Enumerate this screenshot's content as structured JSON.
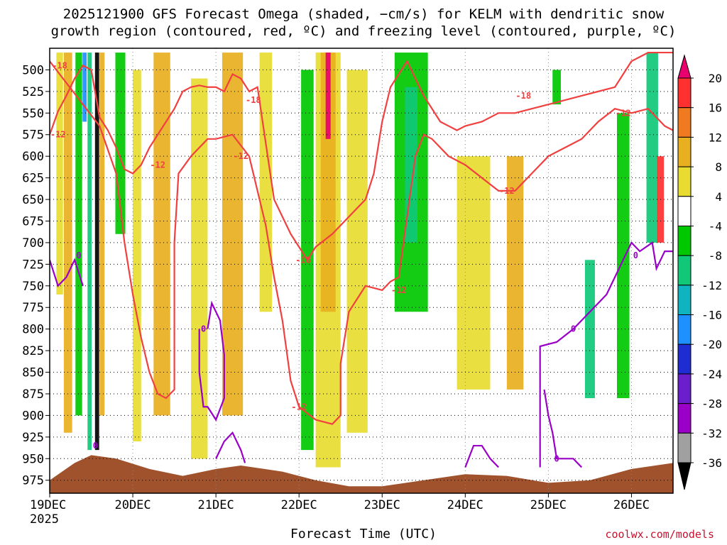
{
  "chart_data": {
    "type": "heatmap",
    "title_line1": "2025121900 GFS Forecast Omega (shaded, −cm/s) for KELM with dendritic snow",
    "title_line2": "growth region (contoured, red, ºC) and freezing level (contoured, purple, ºC)",
    "xlabel": "Forecast Time (UTC)",
    "credit": "coolwx.com/models",
    "x_ticks": [
      {
        "day": 0,
        "label": "19DEC"
      },
      {
        "day": 1,
        "label": "20DEC"
      },
      {
        "day": 2,
        "label": "21DEC"
      },
      {
        "day": 3,
        "label": "22DEC"
      },
      {
        "day": 4,
        "label": "23DEC"
      },
      {
        "day": 5,
        "label": "24DEC"
      },
      {
        "day": 6,
        "label": "25DEC"
      },
      {
        "day": 7,
        "label": "26DEC"
      }
    ],
    "x_year": "2025",
    "xlim_days": [
      0,
      7.5
    ],
    "y_ticks": [
      500,
      525,
      550,
      575,
      600,
      625,
      650,
      675,
      700,
      725,
      750,
      775,
      800,
      825,
      850,
      875,
      900,
      925,
      950,
      975
    ],
    "ylim_hpa": [
      475,
      990
    ],
    "colorbar": {
      "levels": [
        20,
        16,
        12,
        8,
        4,
        -4,
        -8,
        -12,
        -16,
        -20,
        -24,
        -28,
        -32,
        -36
      ],
      "colors": [
        "#e8006e",
        "#ff3030",
        "#f07a20",
        "#e8b020",
        "#e8dc30",
        "#ffffff",
        "#00c800",
        "#10c878",
        "#10b4c0",
        "#1e90ff",
        "#1e2cd2",
        "#6a1ecc",
        "#9a00c8",
        "#a0a0a0",
        "#000000"
      ]
    },
    "omega_bands": [
      {
        "day": 0.12,
        "width": 0.08,
        "top": 480,
        "bottom": 760,
        "color": "#e8dc30"
      },
      {
        "day": 0.22,
        "width": 0.1,
        "top": 480,
        "bottom": 920,
        "color": "#e8b020"
      },
      {
        "day": 0.35,
        "width": 0.08,
        "top": 480,
        "bottom": 900,
        "color": "#00c800"
      },
      {
        "day": 0.42,
        "width": 0.05,
        "top": 480,
        "bottom": 560,
        "color": "#1e90ff"
      },
      {
        "day": 0.48,
        "width": 0.05,
        "top": 480,
        "bottom": 940,
        "color": "#10c878"
      },
      {
        "day": 0.57,
        "width": 0.05,
        "top": 480,
        "bottom": 940,
        "color": "#000000"
      },
      {
        "day": 0.63,
        "width": 0.06,
        "top": 480,
        "bottom": 900,
        "color": "#e8b020"
      },
      {
        "day": 0.85,
        "width": 0.12,
        "top": 480,
        "bottom": 690,
        "color": "#00c800"
      },
      {
        "day": 1.05,
        "width": 0.1,
        "top": 500,
        "bottom": 930,
        "color": "#e8dc30"
      },
      {
        "day": 1.35,
        "width": 0.2,
        "top": 480,
        "bottom": 900,
        "color": "#e8b020"
      },
      {
        "day": 1.8,
        "width": 0.2,
        "top": 510,
        "bottom": 950,
        "color": "#e8dc30"
      },
      {
        "day": 2.2,
        "width": 0.25,
        "top": 480,
        "bottom": 900,
        "color": "#e8b020"
      },
      {
        "day": 2.6,
        "width": 0.15,
        "top": 480,
        "bottom": 780,
        "color": "#e8dc30"
      },
      {
        "day": 3.1,
        "width": 0.15,
        "top": 500,
        "bottom": 940,
        "color": "#00c800"
      },
      {
        "day": 3.35,
        "width": 0.3,
        "top": 480,
        "bottom": 960,
        "color": "#e8dc30"
      },
      {
        "day": 3.35,
        "width": 0.18,
        "top": 480,
        "bottom": 780,
        "color": "#e8b020"
      },
      {
        "day": 3.35,
        "width": 0.06,
        "top": 480,
        "bottom": 580,
        "color": "#e8006e"
      },
      {
        "day": 3.7,
        "width": 0.25,
        "top": 500,
        "bottom": 920,
        "color": "#e8dc30"
      },
      {
        "day": 4.35,
        "width": 0.4,
        "top": 480,
        "bottom": 780,
        "color": "#00c800"
      },
      {
        "day": 4.35,
        "width": 0.15,
        "top": 520,
        "bottom": 700,
        "color": "#10c878"
      },
      {
        "day": 5.1,
        "width": 0.4,
        "top": 600,
        "bottom": 870,
        "color": "#e8dc30"
      },
      {
        "day": 5.6,
        "width": 0.2,
        "top": 600,
        "bottom": 870,
        "color": "#e8b020"
      },
      {
        "day": 6.1,
        "width": 0.1,
        "top": 500,
        "bottom": 540,
        "color": "#00c800"
      },
      {
        "day": 6.5,
        "width": 0.12,
        "top": 720,
        "bottom": 880,
        "color": "#10c878"
      },
      {
        "day": 6.9,
        "width": 0.15,
        "top": 550,
        "bottom": 880,
        "color": "#00c800"
      },
      {
        "day": 7.25,
        "width": 0.14,
        "top": 480,
        "bottom": 700,
        "color": "#10c878"
      },
      {
        "day": 7.35,
        "width": 0.08,
        "top": 600,
        "bottom": 700,
        "color": "#ff3030"
      }
    ],
    "surface": [
      {
        "day": 0.0,
        "hpa": 975
      },
      {
        "day": 0.3,
        "hpa": 955
      },
      {
        "day": 0.5,
        "hpa": 946
      },
      {
        "day": 0.8,
        "hpa": 950
      },
      {
        "day": 1.2,
        "hpa": 962
      },
      {
        "day": 1.6,
        "hpa": 970
      },
      {
        "day": 2.0,
        "hpa": 962
      },
      {
        "day": 2.3,
        "hpa": 958
      },
      {
        "day": 2.8,
        "hpa": 965
      },
      {
        "day": 3.2,
        "hpa": 975
      },
      {
        "day": 3.6,
        "hpa": 982
      },
      {
        "day": 4.0,
        "hpa": 982
      },
      {
        "day": 4.5,
        "hpa": 975
      },
      {
        "day": 5.0,
        "hpa": 968
      },
      {
        "day": 5.5,
        "hpa": 970
      },
      {
        "day": 6.0,
        "hpa": 978
      },
      {
        "day": 6.5,
        "hpa": 975
      },
      {
        "day": 7.0,
        "hpa": 962
      },
      {
        "day": 7.5,
        "hpa": 955
      }
    ],
    "contours": [
      {
        "name": "dgz-top",
        "color": "#f04040",
        "points": [
          [
            0,
            575
          ],
          [
            0.1,
            548
          ],
          [
            0.2,
            530
          ],
          [
            0.3,
            510
          ],
          [
            0.4,
            495
          ],
          [
            0.5,
            500
          ],
          [
            0.6,
            555
          ],
          [
            0.7,
            570
          ],
          [
            0.8,
            590
          ],
          [
            0.9,
            615
          ],
          [
            1.0,
            620
          ],
          [
            1.1,
            610
          ],
          [
            1.2,
            590
          ],
          [
            1.3,
            575
          ],
          [
            1.4,
            560
          ],
          [
            1.5,
            545
          ],
          [
            1.6,
            525
          ],
          [
            1.7,
            520
          ],
          [
            1.8,
            518
          ],
          [
            1.9,
            520
          ],
          [
            2.0,
            520
          ],
          [
            2.1,
            525
          ],
          [
            2.2,
            505
          ],
          [
            2.3,
            510
          ],
          [
            2.4,
            525
          ],
          [
            2.5,
            520
          ],
          [
            2.7,
            650
          ],
          [
            2.9,
            690
          ],
          [
            3.0,
            705
          ],
          [
            3.1,
            720
          ],
          [
            3.2,
            705
          ],
          [
            3.4,
            690
          ],
          [
            3.6,
            670
          ],
          [
            3.8,
            650
          ],
          [
            3.9,
            620
          ],
          [
            4.0,
            560
          ],
          [
            4.1,
            520
          ],
          [
            4.3,
            490
          ],
          [
            4.5,
            530
          ],
          [
            4.7,
            560
          ],
          [
            4.9,
            570
          ],
          [
            5.0,
            565
          ],
          [
            5.2,
            560
          ],
          [
            5.4,
            550
          ],
          [
            5.6,
            550
          ],
          [
            5.8,
            545
          ],
          [
            6.0,
            540
          ],
          [
            6.2,
            535
          ],
          [
            6.4,
            530
          ],
          [
            6.6,
            525
          ],
          [
            6.8,
            520
          ],
          [
            7.0,
            490
          ],
          [
            7.2,
            480
          ],
          [
            7.4,
            480
          ],
          [
            7.5,
            480
          ]
        ],
        "labels": [
          [
            0.12,
            495,
            "-18"
          ],
          [
            2.45,
            535,
            "-18"
          ],
          [
            3.05,
            720,
            "-18"
          ],
          [
            5.7,
            530,
            "-18"
          ]
        ]
      },
      {
        "name": "dgz-bottom",
        "color": "#f04040",
        "points": [
          [
            0,
            490
          ],
          [
            0.6,
            565
          ],
          [
            0.8,
            620
          ],
          [
            0.9,
            700
          ],
          [
            1.0,
            760
          ],
          [
            1.1,
            810
          ],
          [
            1.2,
            850
          ],
          [
            1.3,
            875
          ],
          [
            1.4,
            880
          ],
          [
            1.5,
            870
          ],
          [
            1.5,
            700
          ],
          [
            1.55,
            620
          ],
          [
            1.7,
            600
          ],
          [
            1.9,
            580
          ],
          [
            2.0,
            580
          ],
          [
            2.2,
            575
          ],
          [
            2.4,
            600
          ],
          [
            2.5,
            640
          ],
          [
            2.6,
            680
          ],
          [
            2.7,
            740
          ],
          [
            2.8,
            790
          ],
          [
            2.9,
            860
          ],
          [
            3.0,
            890
          ],
          [
            3.2,
            905
          ],
          [
            3.4,
            910
          ],
          [
            3.5,
            900
          ],
          [
            3.5,
            840
          ],
          [
            3.6,
            780
          ],
          [
            3.8,
            750
          ],
          [
            4.0,
            755
          ],
          [
            4.1,
            745
          ],
          [
            4.2,
            740
          ],
          [
            4.4,
            600
          ],
          [
            4.5,
            575
          ],
          [
            4.6,
            580
          ],
          [
            4.8,
            600
          ],
          [
            5.0,
            610
          ],
          [
            5.2,
            625
          ],
          [
            5.4,
            640
          ],
          [
            5.6,
            640
          ],
          [
            5.8,
            620
          ],
          [
            6.0,
            600
          ],
          [
            6.2,
            590
          ],
          [
            6.4,
            580
          ],
          [
            6.6,
            560
          ],
          [
            6.8,
            545
          ],
          [
            7.0,
            550
          ],
          [
            7.2,
            545
          ],
          [
            7.4,
            565
          ],
          [
            7.5,
            570
          ]
        ],
        "labels": [
          [
            0.1,
            575,
            "-12"
          ],
          [
            1.3,
            610,
            "-12"
          ],
          [
            2.3,
            600,
            "-12"
          ],
          [
            3.0,
            890,
            "-12"
          ],
          [
            4.2,
            755,
            "-12"
          ],
          [
            5.5,
            640,
            "-12"
          ],
          [
            6.9,
            550,
            "-12"
          ]
        ]
      },
      {
        "name": "freezing-level",
        "color": "#9a00c8",
        "points": [
          [
            0,
            720
          ],
          [
            0.1,
            750
          ],
          [
            0.2,
            740
          ],
          [
            0.3,
            720
          ],
          [
            0.4,
            750
          ]
        ],
        "labels": [
          [
            0.35,
            715,
            "0"
          ]
        ]
      },
      {
        "name": "freezing-level-2",
        "color": "#9a00c8",
        "points": [
          [
            1.8,
            800
          ],
          [
            1.8,
            850
          ],
          [
            1.85,
            890
          ],
          [
            1.9,
            890
          ],
          [
            2.0,
            905
          ],
          [
            2.1,
            880
          ],
          [
            2.1,
            830
          ],
          [
            2.05,
            790
          ],
          [
            1.95,
            770
          ],
          [
            1.9,
            800
          ]
        ],
        "labels": [
          [
            1.85,
            800,
            "0"
          ]
        ]
      },
      {
        "name": "freezing-level-3",
        "color": "#9a00c8",
        "points": [
          [
            2.0,
            950
          ],
          [
            2.1,
            930
          ],
          [
            2.2,
            920
          ],
          [
            2.3,
            940
          ],
          [
            2.35,
            955
          ]
        ],
        "labels": [
          [
            0.55,
            935,
            "0"
          ]
        ]
      },
      {
        "name": "freezing-level-4",
        "color": "#9a00c8",
        "points": [
          [
            5.0,
            960
          ],
          [
            5.1,
            935
          ],
          [
            5.2,
            935
          ],
          [
            5.3,
            950
          ],
          [
            5.4,
            960
          ]
        ],
        "labels": []
      },
      {
        "name": "freezing-level-5",
        "color": "#9a00c8",
        "points": [
          [
            5.9,
            960
          ],
          [
            5.9,
            820
          ],
          [
            6.1,
            815
          ],
          [
            6.3,
            800
          ],
          [
            6.5,
            780
          ],
          [
            6.7,
            760
          ],
          [
            6.8,
            740
          ],
          [
            7.0,
            700
          ],
          [
            7.1,
            710
          ],
          [
            7.25,
            700
          ],
          [
            7.3,
            730
          ],
          [
            7.4,
            710
          ],
          [
            7.5,
            710
          ]
        ],
        "labels": [
          [
            6.3,
            800,
            "0"
          ],
          [
            7.05,
            715,
            "0"
          ],
          [
            6.1,
            950,
            "0"
          ]
        ]
      },
      {
        "name": "freezing-level-6",
        "color": "#9a00c8",
        "points": [
          [
            5.95,
            870
          ],
          [
            6.0,
            900
          ],
          [
            6.05,
            920
          ],
          [
            6.1,
            950
          ],
          [
            6.3,
            950
          ],
          [
            6.4,
            960
          ]
        ],
        "labels": []
      }
    ]
  }
}
